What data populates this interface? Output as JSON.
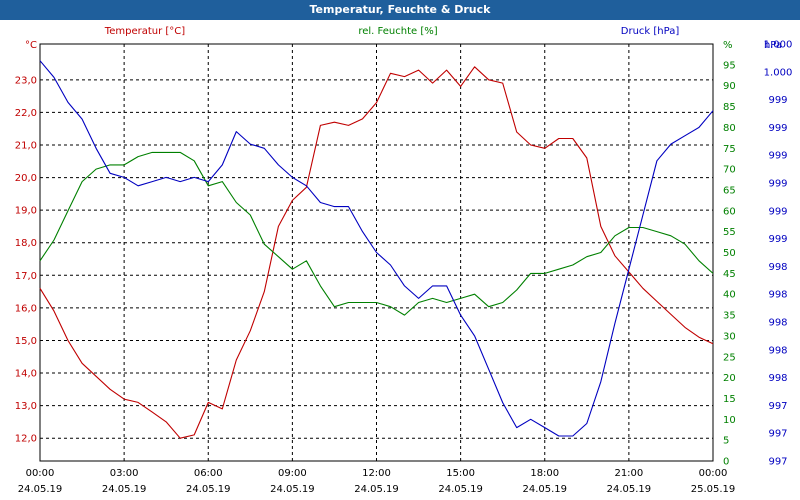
{
  "window": {
    "title": "Temperatur, Feuchte & Druck"
  },
  "chart_data": {
    "type": "line",
    "title": "Temperatur, Feuchte & Druck",
    "grid": true,
    "x_ticks": [
      {
        "time": "00:00",
        "date": "24.05.19"
      },
      {
        "time": "03:00",
        "date": "24.05.19"
      },
      {
        "time": "06:00",
        "date": "24.05.19"
      },
      {
        "time": "09:00",
        "date": "24.05.19"
      },
      {
        "time": "12:00",
        "date": "24.05.19"
      },
      {
        "time": "15:00",
        "date": "24.05.19"
      },
      {
        "time": "18:00",
        "date": "24.05.19"
      },
      {
        "time": "21:00",
        "date": "24.05.19"
      },
      {
        "time": "00:00",
        "date": "25.05.19"
      }
    ],
    "xlim_hours": [
      0,
      24
    ],
    "axes": {
      "temperature": {
        "unit": "°C",
        "label": "Temperatur [°C]",
        "color": "#c00000",
        "ylim": [
          11.3,
          24.1
        ],
        "ticks": [
          "12,0",
          "13,0",
          "14,0",
          "15,0",
          "16,0",
          "17,0",
          "18,0",
          "19,0",
          "20,0",
          "21,0",
          "22,0",
          "23,0"
        ],
        "tick_values": [
          12,
          13,
          14,
          15,
          16,
          17,
          18,
          19,
          20,
          21,
          22,
          23
        ]
      },
      "humidity": {
        "unit": "%",
        "label": "rel. Feuchte [%]",
        "color": "#008000",
        "ylim": [
          0,
          100
        ],
        "ticks": [
          "0",
          "5",
          "10",
          "15",
          "20",
          "25",
          "30",
          "35",
          "40",
          "45",
          "50",
          "55",
          "60",
          "65",
          "70",
          "75",
          "80",
          "85",
          "90",
          "95"
        ],
        "tick_values": [
          0,
          5,
          10,
          15,
          20,
          25,
          30,
          35,
          40,
          45,
          50,
          55,
          60,
          65,
          70,
          75,
          80,
          85,
          90,
          95
        ]
      },
      "pressure": {
        "unit": "hPa",
        "label": "Druck [hPa]",
        "color": "#0000c0",
        "ylim": [
          0,
          100
        ],
        "ticks": [
          "997",
          "997",
          "997",
          "998",
          "998",
          "998",
          "998",
          "998",
          "999",
          "999",
          "999",
          "999",
          "999",
          "999",
          "1.000",
          "1.000"
        ],
        "tick_values": [
          0,
          10,
          20,
          30,
          40,
          50,
          60,
          70,
          80,
          90,
          100,
          110,
          120,
          130,
          140,
          150
        ],
        "tick_scale_max": 150
      }
    },
    "series": [
      {
        "name": "Temperatur [°C]",
        "axis": "temperature",
        "color": "#c00000",
        "x": [
          0,
          0.5,
          1,
          1.5,
          2,
          2.5,
          3,
          3.5,
          4,
          4.5,
          5,
          5.5,
          6,
          6.5,
          7,
          7.5,
          8,
          8.5,
          9,
          9.5,
          10,
          10.5,
          11,
          11.5,
          12,
          12.5,
          13,
          13.5,
          14,
          14.5,
          15,
          15.5,
          16,
          16.5,
          17,
          17.5,
          18,
          18.5,
          19,
          19.5,
          20,
          20.5,
          21,
          21.5,
          22,
          22.5,
          23,
          23.5,
          24
        ],
        "values": [
          16.6,
          15.9,
          15.0,
          14.3,
          13.9,
          13.5,
          13.2,
          13.1,
          12.8,
          12.5,
          12.0,
          12.1,
          13.1,
          12.9,
          14.4,
          15.3,
          16.5,
          18.5,
          19.3,
          19.7,
          21.6,
          21.7,
          21.6,
          21.8,
          22.3,
          23.2,
          23.1,
          23.3,
          22.9,
          23.3,
          22.8,
          23.4,
          23.0,
          22.9,
          21.4,
          21.0,
          20.9,
          21.2,
          21.2,
          20.6,
          18.5,
          17.6,
          17.1,
          16.6,
          16.2,
          15.8,
          15.4,
          15.1,
          14.9
        ]
      },
      {
        "name": "rel. Feuchte [%]",
        "axis": "humidity",
        "color": "#008000",
        "x": [
          0,
          0.5,
          1,
          1.5,
          2,
          2.5,
          3,
          3.5,
          4,
          4.5,
          5,
          5.5,
          6,
          6.5,
          7,
          7.5,
          8,
          8.5,
          9,
          9.5,
          10,
          10.5,
          11,
          11.5,
          12,
          12.5,
          13,
          13.5,
          14,
          14.5,
          15,
          15.5,
          16,
          16.5,
          17,
          17.5,
          18,
          18.5,
          19,
          19.5,
          20,
          20.5,
          21,
          21.5,
          22,
          22.5,
          23,
          23.5,
          24
        ],
        "values": [
          48,
          53,
          60,
          67,
          70,
          71,
          71,
          73,
          74,
          74,
          74,
          72,
          66,
          67,
          62,
          59,
          52,
          49,
          46,
          48,
          42,
          37,
          38,
          38,
          38,
          37,
          35,
          38,
          39,
          38,
          39,
          40,
          37,
          38,
          41,
          45,
          45,
          46,
          47,
          49,
          50,
          54,
          56,
          56,
          55,
          54,
          52,
          48,
          45
        ]
      },
      {
        "name": "Druck [hPa]",
        "axis": "pressure",
        "color": "#0000c0",
        "x": [
          0,
          0.5,
          1,
          1.5,
          2,
          2.5,
          3,
          3.5,
          4,
          4.5,
          5,
          5.5,
          6,
          6.5,
          7,
          7.5,
          8,
          8.5,
          9,
          9.5,
          10,
          10.5,
          11,
          11.5,
          12,
          12.5,
          13,
          13.5,
          14,
          14.5,
          15,
          15.5,
          16,
          16.5,
          17,
          17.5,
          18,
          18.5,
          19,
          19.5,
          20,
          20.5,
          21,
          21.5,
          22,
          22.5,
          23,
          23.5,
          24
        ],
        "values": [
          96,
          92,
          86,
          82,
          75,
          69,
          68,
          66,
          67,
          68,
          67,
          68,
          67,
          71,
          79,
          76,
          75,
          71,
          68,
          66,
          62,
          61,
          61,
          55,
          50,
          47,
          42,
          39,
          42,
          42,
          35,
          30,
          22,
          14,
          8,
          10,
          8,
          6,
          6,
          9,
          19,
          33,
          46,
          59,
          72,
          76,
          78,
          80,
          84
        ]
      }
    ]
  }
}
